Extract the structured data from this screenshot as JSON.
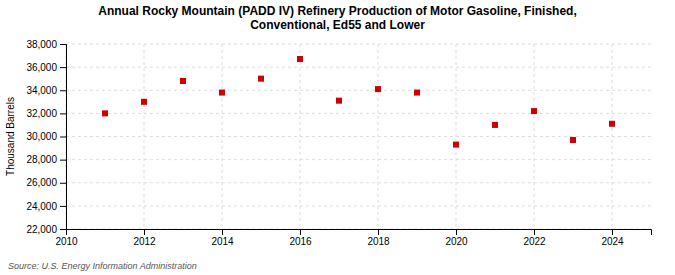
{
  "chart_data": {
    "type": "scatter",
    "title": "Annual Rocky Mountain (PADD IV) Refinery Production of Motor Gasoline, Finished,\nConventional, Ed55 and Lower",
    "ylabel": "Thousand Barrels",
    "source": "Source: U.S. Energy Information Administration",
    "x": [
      2011,
      2012,
      2013,
      2014,
      2015,
      2016,
      2017,
      2018,
      2019,
      2020,
      2021,
      2022,
      2023,
      2024
    ],
    "values": [
      32000,
      33000,
      34800,
      33800,
      35000,
      36700,
      33100,
      34100,
      33800,
      29300,
      31000,
      32200,
      29700,
      31100
    ],
    "color": "#cc0000",
    "marker": "square",
    "xlim": [
      2010,
      2025
    ],
    "ylim": [
      22000,
      38000
    ],
    "xticks": [
      2010,
      2012,
      2014,
      2016,
      2018,
      2020,
      2022,
      2024
    ],
    "yticks": [
      {
        "value": 22000,
        "label": "22,000"
      },
      {
        "value": 24000,
        "label": "24,000"
      },
      {
        "value": 26000,
        "label": "26,000"
      },
      {
        "value": 28000,
        "label": "28,000"
      },
      {
        "value": 30000,
        "label": "30,000"
      },
      {
        "value": 32000,
        "label": "32,000"
      },
      {
        "value": 34000,
        "label": "34,000"
      },
      {
        "value": 36000,
        "label": "36,000"
      },
      {
        "value": 38000,
        "label": "38,000"
      }
    ],
    "grid": true
  }
}
